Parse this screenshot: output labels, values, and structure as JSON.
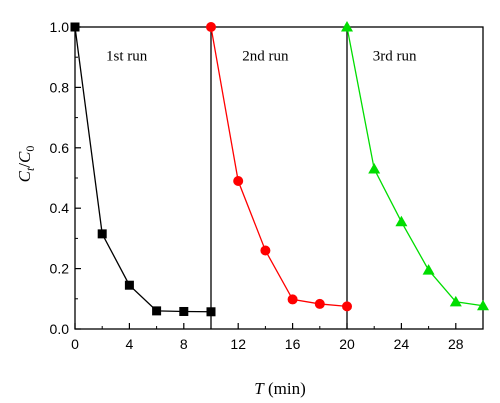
{
  "chart_data": {
    "type": "line",
    "title": "",
    "xlabel": {
      "var": "T",
      "unit": " (min)"
    },
    "ylabel": {
      "c1": "C",
      "s1": "t",
      "sep": "/",
      "c2": "C",
      "s2": "0"
    },
    "xlim": [
      0,
      30
    ],
    "ylim": [
      0,
      1.0
    ],
    "x_ticks": [
      0,
      4,
      8,
      12,
      16,
      20,
      24,
      28
    ],
    "y_ticks": [
      "0.0",
      "0.2",
      "0.4",
      "0.6",
      "0.8",
      "1.0"
    ],
    "grid": false,
    "legend": "none",
    "separators_x": [
      10,
      20
    ],
    "series": [
      {
        "name": "1st run",
        "color": "#000000",
        "marker": "square",
        "x": [
          0,
          2,
          4,
          6,
          8,
          10
        ],
        "y": [
          1.0,
          0.315,
          0.145,
          0.06,
          0.058,
          0.057
        ]
      },
      {
        "name": "2nd run",
        "color": "#ff0000",
        "marker": "circle",
        "x": [
          10,
          12,
          14,
          16,
          18,
          20
        ],
        "y": [
          1.0,
          0.49,
          0.26,
          0.098,
          0.083,
          0.075
        ]
      },
      {
        "name": "3rd run",
        "color": "#00dd00",
        "marker": "triangle",
        "x": [
          20,
          22,
          24,
          26,
          28,
          30
        ],
        "y": [
          1.0,
          0.53,
          0.355,
          0.195,
          0.09,
          0.077
        ]
      }
    ],
    "run_labels": [
      {
        "text": "1st run",
        "x": 3.8,
        "y": 0.905
      },
      {
        "text": "2nd run",
        "x": 14.0,
        "y": 0.905
      },
      {
        "text": "3rd run",
        "x": 23.5,
        "y": 0.905
      }
    ]
  }
}
